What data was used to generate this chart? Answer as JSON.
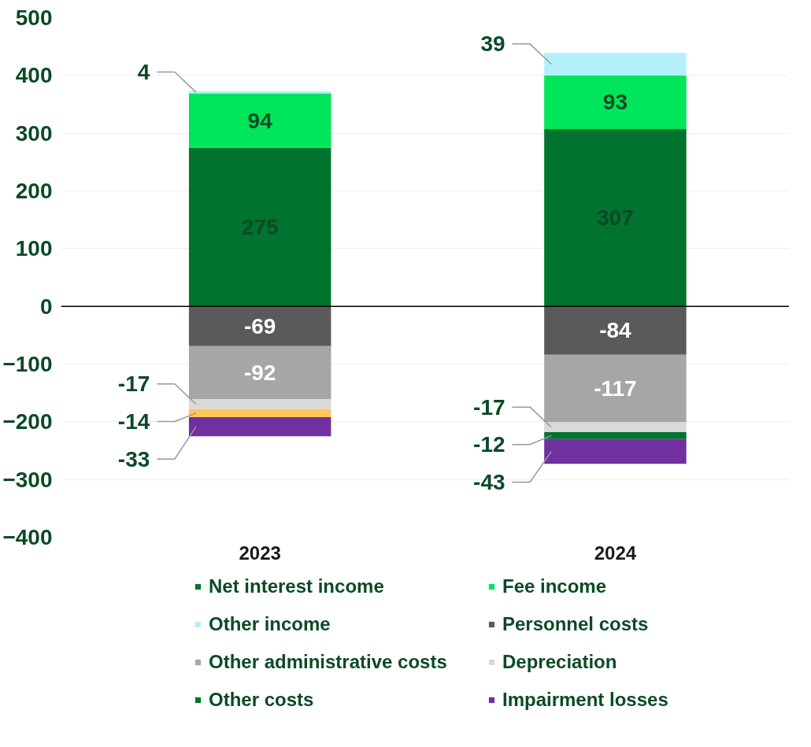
{
  "chart_data": {
    "type": "bar",
    "stacked": true,
    "data_labels": true,
    "grid": "y",
    "legend": "bottom",
    "categories": [
      "2023",
      "2024"
    ],
    "ylim": [
      -400,
      500
    ],
    "yticks": [
      -400,
      -300,
      -200,
      -100,
      0,
      100,
      200,
      300,
      400,
      500
    ],
    "series": [
      {
        "name": "Net interest income",
        "color": "#00732e",
        "values": [
          275,
          307
        ]
      },
      {
        "name": "Fee income",
        "color": "#00e65a",
        "values": [
          94,
          93
        ]
      },
      {
        "name": "Other income",
        "color": "#b3f0fb",
        "values": [
          4,
          39
        ]
      },
      {
        "name": "Personnel costs",
        "color": "#5a5a5a",
        "values": [
          -69,
          -84
        ]
      },
      {
        "name": "Other administrative costs",
        "color": "#a6a6a6",
        "values": [
          -92,
          -117
        ]
      },
      {
        "name": "Depreciation",
        "color": "#d9d9d9",
        "values": [
          -17,
          -17
        ]
      },
      {
        "name": "Other costs",
        "color": "#00732e",
        "colors": [
          "#ffc658",
          "#00732e"
        ],
        "values": [
          -14,
          -12
        ]
      },
      {
        "name": "Impairment losses",
        "color": "#7030a0",
        "values": [
          -33,
          -43
        ]
      }
    ]
  }
}
